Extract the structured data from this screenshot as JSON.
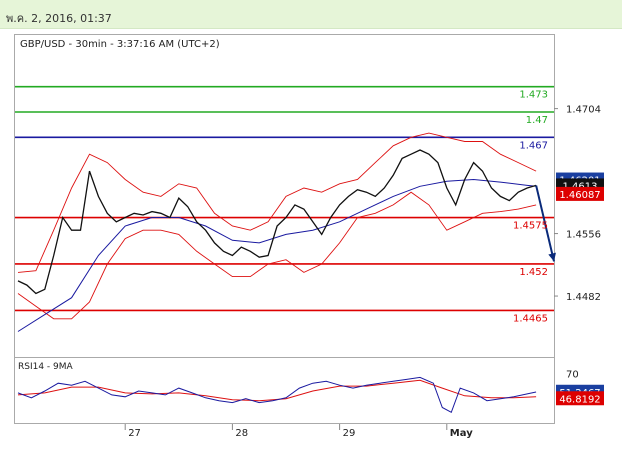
{
  "header": {
    "timestamp": "พ.ค. 2, 2016, 01:37"
  },
  "chart_data": {
    "type": "candlestick",
    "title": "GBP/USD - 30min - 3:37:16 AM (UTC+2)",
    "x_labels": [
      "27",
      "28",
      "29",
      "May"
    ],
    "y_ticks": [
      "1.4704",
      "1.4556",
      "1.4482"
    ],
    "ylim": [
      1.4411,
      1.479
    ],
    "grid": false,
    "levels": [
      {
        "label": "1.473",
        "value": 1.473,
        "color": "#22aa22",
        "kind": "resistance"
      },
      {
        "label": "1.47",
        "value": 1.47,
        "color": "#22aa22",
        "kind": "resistance"
      },
      {
        "label": "1.467",
        "value": 1.467,
        "color": "#1a1aa0",
        "kind": "pivot"
      },
      {
        "label": "1.4575",
        "value": 1.4575,
        "color": "#dd0000",
        "kind": "support"
      },
      {
        "label": "1.452",
        "value": 1.452,
        "color": "#dd0000",
        "kind": "support"
      },
      {
        "label": "1.4465",
        "value": 1.4465,
        "color": "#dd0000",
        "kind": "support"
      }
    ],
    "price_badges": [
      {
        "label": "1.46201",
        "value": 1.462,
        "bg": "#1a3fa0",
        "fg": "#ffffff"
      },
      {
        "label": "1.4613",
        "value": 1.4613,
        "bg": "#111111",
        "fg": "#ffffff"
      },
      {
        "label": "1.46087",
        "value": 1.4603,
        "bg": "#dd0000",
        "fg": "#ffffff"
      }
    ],
    "price_path": [
      [
        0,
        1.45
      ],
      [
        4,
        1.4495
      ],
      [
        8,
        1.4485
      ],
      [
        12,
        1.449
      ],
      [
        16,
        1.453
      ],
      [
        20,
        1.4575
      ],
      [
        24,
        1.456
      ],
      [
        28,
        1.456
      ],
      [
        32,
        1.463
      ],
      [
        36,
        1.46
      ],
      [
        40,
        1.458
      ],
      [
        44,
        1.457
      ],
      [
        48,
        1.4575
      ],
      [
        52,
        1.458
      ],
      [
        56,
        1.4578
      ],
      [
        60,
        1.4582
      ],
      [
        64,
        1.458
      ],
      [
        68,
        1.4575
      ],
      [
        72,
        1.4598
      ],
      [
        76,
        1.4588
      ],
      [
        80,
        1.457
      ],
      [
        84,
        1.456
      ],
      [
        88,
        1.4545
      ],
      [
        92,
        1.4535
      ],
      [
        96,
        1.453
      ],
      [
        100,
        1.454
      ],
      [
        104,
        1.4535
      ],
      [
        108,
        1.4528
      ],
      [
        112,
        1.453
      ],
      [
        116,
        1.4565
      ],
      [
        120,
        1.4575
      ],
      [
        124,
        1.459
      ],
      [
        128,
        1.4585
      ],
      [
        132,
        1.457
      ],
      [
        136,
        1.4555
      ],
      [
        140,
        1.4575
      ],
      [
        144,
        1.459
      ],
      [
        148,
        1.46
      ],
      [
        152,
        1.4608
      ],
      [
        156,
        1.4605
      ],
      [
        160,
        1.46
      ],
      [
        164,
        1.461
      ],
      [
        168,
        1.4625
      ],
      [
        172,
        1.4645
      ],
      [
        176,
        1.465
      ],
      [
        180,
        1.4655
      ],
      [
        184,
        1.465
      ],
      [
        188,
        1.464
      ],
      [
        192,
        1.461
      ],
      [
        196,
        1.459
      ],
      [
        200,
        1.462
      ],
      [
        204,
        1.464
      ],
      [
        208,
        1.463
      ],
      [
        212,
        1.461
      ],
      [
        216,
        1.46
      ],
      [
        220,
        1.4595
      ],
      [
        224,
        1.4605
      ],
      [
        228,
        1.461
      ],
      [
        232,
        1.4613
      ]
    ],
    "ma_path": [
      [
        0,
        1.444
      ],
      [
        12,
        1.446
      ],
      [
        24,
        1.448
      ],
      [
        36,
        1.453
      ],
      [
        48,
        1.4565
      ],
      [
        60,
        1.4575
      ],
      [
        72,
        1.4575
      ],
      [
        84,
        1.4565
      ],
      [
        96,
        1.4548
      ],
      [
        108,
        1.4545
      ],
      [
        120,
        1.4555
      ],
      [
        132,
        1.456
      ],
      [
        144,
        1.457
      ],
      [
        156,
        1.4585
      ],
      [
        168,
        1.46
      ],
      [
        180,
        1.4612
      ],
      [
        192,
        1.4618
      ],
      [
        204,
        1.462
      ],
      [
        216,
        1.4617
      ],
      [
        228,
        1.4613
      ],
      [
        232,
        1.4612
      ]
    ],
    "bb_upper": [
      [
        0,
        1.451
      ],
      [
        8,
        1.4512
      ],
      [
        16,
        1.456
      ],
      [
        24,
        1.461
      ],
      [
        32,
        1.465
      ],
      [
        40,
        1.464
      ],
      [
        48,
        1.462
      ],
      [
        56,
        1.4605
      ],
      [
        64,
        1.46
      ],
      [
        72,
        1.4615
      ],
      [
        80,
        1.461
      ],
      [
        88,
        1.458
      ],
      [
        96,
        1.4565
      ],
      [
        104,
        1.456
      ],
      [
        112,
        1.457
      ],
      [
        120,
        1.46
      ],
      [
        128,
        1.461
      ],
      [
        136,
        1.4605
      ],
      [
        144,
        1.4615
      ],
      [
        152,
        1.462
      ],
      [
        160,
        1.464
      ],
      [
        168,
        1.466
      ],
      [
        176,
        1.467
      ],
      [
        184,
        1.4675
      ],
      [
        192,
        1.467
      ],
      [
        200,
        1.4665
      ],
      [
        208,
        1.4665
      ],
      [
        216,
        1.465
      ],
      [
        224,
        1.464
      ],
      [
        232,
        1.463
      ]
    ],
    "bb_lower": [
      [
        0,
        1.4485
      ],
      [
        8,
        1.447
      ],
      [
        16,
        1.4455
      ],
      [
        24,
        1.4455
      ],
      [
        32,
        1.4475
      ],
      [
        40,
        1.452
      ],
      [
        48,
        1.455
      ],
      [
        56,
        1.456
      ],
      [
        64,
        1.456
      ],
      [
        72,
        1.4555
      ],
      [
        80,
        1.4535
      ],
      [
        88,
        1.452
      ],
      [
        96,
        1.4505
      ],
      [
        104,
        1.4505
      ],
      [
        112,
        1.452
      ],
      [
        120,
        1.4525
      ],
      [
        128,
        1.451
      ],
      [
        136,
        1.452
      ],
      [
        144,
        1.4545
      ],
      [
        152,
        1.4575
      ],
      [
        160,
        1.458
      ],
      [
        168,
        1.459
      ],
      [
        176,
        1.4605
      ],
      [
        184,
        1.459
      ],
      [
        192,
        1.456
      ],
      [
        200,
        1.457
      ],
      [
        208,
        1.458
      ],
      [
        216,
        1.4582
      ],
      [
        224,
        1.4585
      ],
      [
        232,
        1.459
      ]
    ],
    "forecast_arrow": {
      "from": [
        232,
        1.4613
      ],
      "to": [
        240,
        1.4523
      ]
    },
    "rsi": {
      "label": "RSI14 - 9MA",
      "tick_label": "70",
      "tick_value": 70,
      "ylim": [
        20,
        85
      ],
      "badges": [
        {
          "label": "51.2467",
          "value": 51.2,
          "bg": "#1a3fa0",
          "fg": "#ffffff"
        },
        {
          "label": "46.8192",
          "value": 44.5,
          "bg": "#dd0000",
          "fg": "#ffffff"
        }
      ],
      "rsi_path": [
        [
          0,
          50
        ],
        [
          6,
          45
        ],
        [
          12,
          52
        ],
        [
          18,
          60
        ],
        [
          24,
          58
        ],
        [
          30,
          62
        ],
        [
          36,
          55
        ],
        [
          42,
          48
        ],
        [
          48,
          46
        ],
        [
          54,
          52
        ],
        [
          60,
          50
        ],
        [
          66,
          48
        ],
        [
          72,
          55
        ],
        [
          78,
          50
        ],
        [
          84,
          45
        ],
        [
          90,
          42
        ],
        [
          96,
          40
        ],
        [
          102,
          44
        ],
        [
          108,
          40
        ],
        [
          114,
          42
        ],
        [
          120,
          45
        ],
        [
          126,
          55
        ],
        [
          132,
          60
        ],
        [
          138,
          62
        ],
        [
          144,
          58
        ],
        [
          150,
          55
        ],
        [
          156,
          58
        ],
        [
          162,
          60
        ],
        [
          168,
          62
        ],
        [
          174,
          64
        ],
        [
          180,
          66
        ],
        [
          186,
          60
        ],
        [
          190,
          35
        ],
        [
          194,
          30
        ],
        [
          198,
          55
        ],
        [
          204,
          50
        ],
        [
          210,
          42
        ],
        [
          216,
          44
        ],
        [
          222,
          46
        ],
        [
          228,
          49
        ],
        [
          232,
          51
        ]
      ],
      "ma_path": [
        [
          0,
          48
        ],
        [
          12,
          50
        ],
        [
          24,
          56
        ],
        [
          36,
          56
        ],
        [
          48,
          50
        ],
        [
          60,
          49
        ],
        [
          72,
          50
        ],
        [
          84,
          47
        ],
        [
          96,
          43
        ],
        [
          108,
          42
        ],
        [
          120,
          44
        ],
        [
          132,
          52
        ],
        [
          144,
          57
        ],
        [
          156,
          57
        ],
        [
          168,
          60
        ],
        [
          180,
          63
        ],
        [
          190,
          55
        ],
        [
          200,
          47
        ],
        [
          212,
          45
        ],
        [
          222,
          45
        ],
        [
          232,
          46
        ]
      ]
    }
  }
}
